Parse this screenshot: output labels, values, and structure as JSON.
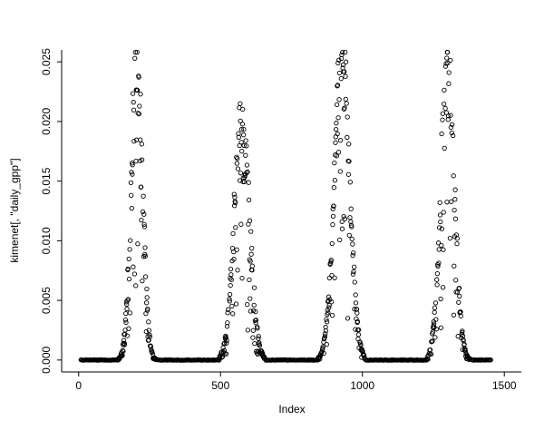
{
  "figure": {
    "background": "#ffffff",
    "point_color": "#000000"
  },
  "chart_data": {
    "type": "scatter",
    "title": "",
    "xlabel": "Index",
    "ylabel": "kimenet[, \"daily_gpp\"]",
    "xlim": [
      0,
      1500
    ],
    "ylim": [
      0,
      0.025
    ],
    "x_ticks": [
      0,
      500,
      1000,
      1500
    ],
    "y_ticks": [
      0.0,
      0.005,
      0.01,
      0.015,
      0.02,
      0.025
    ],
    "grid": false,
    "legend": null,
    "marker": "open-circle",
    "n_points_approx": 1460,
    "zero_segments": [
      [
        8,
        140
      ],
      [
        285,
        495
      ],
      [
        660,
        843
      ],
      [
        1012,
        1226
      ],
      [
        1386,
        1452
      ]
    ],
    "peaks": [
      {
        "range": [
          142,
          278
        ],
        "center": 205,
        "sigma": 20,
        "amplitude": 0.0255
      },
      {
        "range": [
          495,
          655
        ],
        "center": 575,
        "sigma": 27,
        "amplitude": 0.0205
      },
      {
        "range": [
          845,
          1008
        ],
        "center": 928,
        "sigma": 27,
        "amplitude": 0.0257
      },
      {
        "range": [
          1228,
          1380
        ],
        "center": 1300,
        "sigma": 24,
        "amplitude": 0.0248
      }
    ],
    "value_cap": 0.0258,
    "noise": {
      "seed": 7,
      "skip_fraction": 0.12,
      "down_outlier_depth": 0.85,
      "down_outlier_power": 4,
      "envelope_jitter": 0.25
    }
  }
}
